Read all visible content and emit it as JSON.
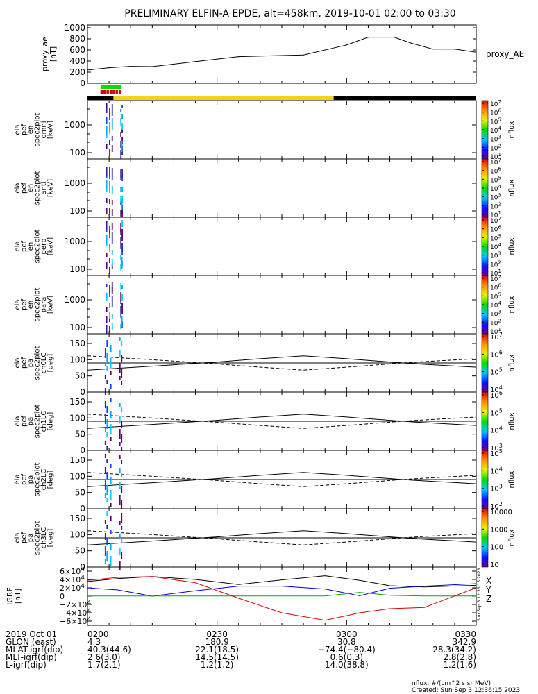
{
  "title": "PRELIMINARY ELFIN-A EPDE, alt=458km, 2019-10-01 02:00 to 03:30",
  "colors": {
    "ae_line": "#000000",
    "flag_green": "#00e000",
    "flag_red": "#e00000",
    "sunlight_bar": "#f2d21b",
    "shadow_bar": "#000000",
    "grf_x": "#000000",
    "grf_y": "#0000dd",
    "grf_z": "#00aa00",
    "grf_total": "#dd0000"
  },
  "colorbar_labels": {
    "p1": [
      "10^7",
      "10^6",
      "10^5",
      "10^4",
      "10^3",
      "10^2",
      "10^1"
    ],
    "p2": [
      "10^7",
      "10^6",
      "10^5",
      "10^4",
      "10^3",
      "10^2",
      "10^1"
    ],
    "p3": [
      "10^7",
      "10^6",
      "10^5",
      "10^4",
      "10^3",
      "10^2",
      "10^1"
    ],
    "p4": [
      "10^7",
      "10^6",
      "10^5",
      "10^4",
      "10^3",
      "10^2",
      "10^1"
    ],
    "p5": [
      "10^7",
      "10^6",
      "10^5",
      "10^4"
    ],
    "p6": [
      "10^6",
      "10^5",
      "10^4",
      "10^3"
    ],
    "p7": [
      "10^5",
      "10^4",
      "10^3",
      "10^2"
    ],
    "p8": [
      "10000",
      "1000",
      "100",
      "10"
    ],
    "unit": "nflux"
  },
  "chart_data": [
    {
      "type": "line",
      "panel": "proxy_ae",
      "ylabel": "proxy_ae [nT]",
      "legend": "proxy_AE",
      "ylim": [
        0,
        1050
      ],
      "yticks": [
        0,
        200,
        400,
        600,
        800,
        1000
      ],
      "x_time": [
        "0200",
        "0205",
        "0210",
        "0215",
        "0225",
        "0235",
        "0250",
        "0300",
        "0305",
        "0311",
        "0315",
        "0320",
        "0325",
        "0330"
      ],
      "values": [
        240,
        280,
        305,
        300,
        390,
        480,
        510,
        690,
        830,
        830,
        720,
        615,
        615,
        560
      ]
    },
    {
      "type": "heatmap",
      "panel": "spec_omni",
      "ylabel": "ela pef en spec2plot omni [keV]",
      "ylog": true,
      "ytick_labels": [
        "1000",
        "100"
      ],
      "zlabel": "nflux",
      "zrange": [
        "10^1",
        "10^7"
      ]
    },
    {
      "type": "heatmap",
      "panel": "spec_anti",
      "ylabel": "ela pef en spec2plot anti [keV]",
      "ylog": true,
      "ytick_labels": [
        "1000",
        "100"
      ],
      "zlabel": "nflux",
      "zrange": [
        "10^1",
        "10^7"
      ]
    },
    {
      "type": "heatmap",
      "panel": "spec_perp",
      "ylabel": "ela pef en spec2plot perp [keV]",
      "ylog": true,
      "ytick_labels": [
        "1000",
        "100"
      ],
      "zlabel": "nflux",
      "zrange": [
        "10^1",
        "10^7"
      ]
    },
    {
      "type": "heatmap",
      "panel": "spec_para",
      "ylabel": "ela pef en spec2plot para [keV]",
      "ylog": true,
      "ytick_labels": [
        "1000",
        "100"
      ],
      "zlabel": "nflux",
      "zrange": [
        "10^1",
        "10^7"
      ]
    },
    {
      "type": "heatmap",
      "panel": "pa_ch0",
      "ylabel": "ela pef pa spec2plot ch0LC [deg]",
      "ylim": [
        0,
        180
      ],
      "yticks": [
        0,
        50,
        100,
        150
      ],
      "zlabel": "nflux",
      "zrange": [
        "10^4",
        "10^7"
      ]
    },
    {
      "type": "heatmap",
      "panel": "pa_ch1",
      "ylabel": "ela pef pa spec2plot ch1LC [deg]",
      "ylim": [
        0,
        180
      ],
      "yticks": [
        0,
        50,
        100,
        150
      ],
      "zlabel": "nflux",
      "zrange": [
        "10^3",
        "10^6"
      ]
    },
    {
      "type": "heatmap",
      "panel": "pa_ch2",
      "ylabel": "ela pef pa spec2plot ch2LC [deg]",
      "ylim": [
        0,
        180
      ],
      "yticks": [
        0,
        50,
        100,
        150
      ],
      "zlabel": "nflux",
      "zrange": [
        "10^2",
        "10^5"
      ]
    },
    {
      "type": "heatmap",
      "panel": "pa_ch3",
      "ylabel": "ela pef pa spec2plot ch3LC [deg]",
      "ylim": [
        0,
        180
      ],
      "yticks": [
        0,
        50,
        100,
        150
      ],
      "zlabel": "nflux",
      "zrange": [
        "10",
        "10000"
      ]
    },
    {
      "type": "line",
      "panel": "igrf",
      "ylabel": "IGRF [nT]",
      "ylim": [
        -70000,
        70000
      ],
      "yticks": [
        -60000,
        -40000,
        -20000,
        0,
        20000,
        40000,
        60000
      ],
      "ytick_labels": [
        "−6×10^4",
        "−4×10^4",
        "−2×10^4",
        "0",
        "2×10^4",
        "4×10^4",
        "6×10^4"
      ],
      "x_time": [
        "0200",
        "0207",
        "0215",
        "0225",
        "0235",
        "0245",
        "0255",
        "0303",
        "0310",
        "0318",
        "0330"
      ],
      "series": [
        {
          "name": "X",
          "values": [
            35000,
            42000,
            47000,
            40000,
            28000,
            39000,
            49000,
            38000,
            25000,
            22000,
            26000
          ]
        },
        {
          "name": "Y",
          "values": [
            20000,
            15000,
            0,
            13000,
            24000,
            24000,
            17000,
            1000,
            19000,
            24000,
            30000
          ]
        },
        {
          "name": "Z",
          "values": [
            500,
            500,
            500,
            500,
            500,
            500,
            500,
            9000,
            2000,
            500,
            500
          ]
        },
        {
          "name": "",
          "values": [
            38000,
            45000,
            47000,
            32000,
            -5000,
            -40000,
            -58000,
            -40000,
            -30000,
            -27000,
            20000
          ]
        }
      ],
      "legend_letters": [
        "X",
        "Y",
        "Z"
      ]
    }
  ],
  "xaxis": {
    "row_labels": [
      "2019 Oct 01",
      "GLON (east)",
      "MLAT-igrf(dip)",
      "MLT-igrf(dip)",
      "L-igrf(dip)"
    ],
    "columns": [
      [
        "0200",
        "4.3",
        "40.3(44.6)",
        "2.6(3.0)",
        "1.7(2.1)"
      ],
      [
        "0230",
        "180.9",
        "22.1(18.5)",
        "14.5(14.5)",
        "1.2(1.2)"
      ],
      [
        "0300",
        "30.8",
        "−74.4(−80.4)",
        "0.6(0.3)",
        "14.0(38.8)"
      ],
      [
        "0330",
        "342.9",
        "28.3(34.2)",
        "2.8(2.8)",
        "1.2(1.6)"
      ]
    ]
  },
  "side_stamp": "Sun Sep 3 12:36:15 2023",
  "footer": {
    "units": "nflux: #/(cm^2 s sr MeV)",
    "created": "Created: Sun Sep  3 12:36:15 2023"
  }
}
